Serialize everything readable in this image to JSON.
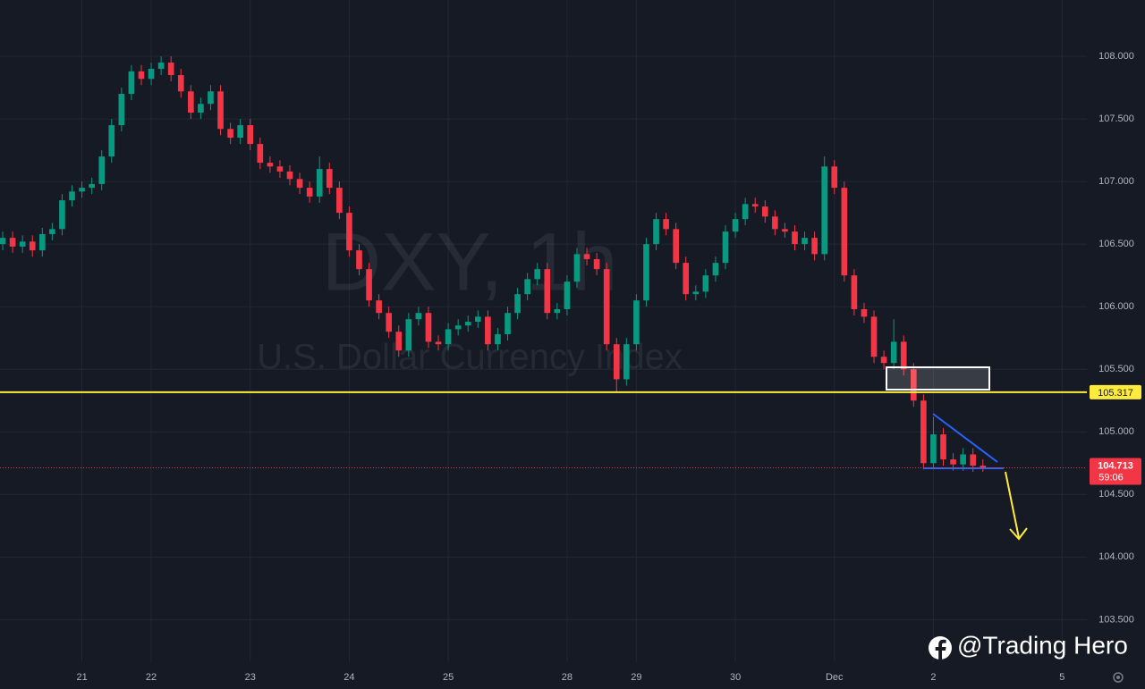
{
  "chart_data": {
    "type": "candlestick",
    "watermark_symbol": "DXY, 1h",
    "watermark_name": "U.S. Dollar Currency Index",
    "categories": [
      null,
      null,
      null,
      null,
      null,
      null,
      null,
      null,
      "21",
      null,
      null,
      null,
      null,
      null,
      null,
      "22",
      null,
      null,
      null,
      null,
      null,
      null,
      null,
      null,
      null,
      "23",
      null,
      null,
      null,
      null,
      null,
      null,
      null,
      null,
      null,
      "24",
      null,
      null,
      null,
      null,
      null,
      null,
      null,
      null,
      null,
      "25",
      null,
      null,
      null,
      null,
      null,
      null,
      null,
      null,
      null,
      null,
      null,
      "28",
      null,
      null,
      null,
      null,
      null,
      null,
      "29",
      null,
      null,
      null,
      null,
      null,
      null,
      null,
      null,
      null,
      "30",
      null,
      null,
      null,
      null,
      null,
      null,
      null,
      null,
      null,
      "Dec",
      null,
      null,
      null,
      null,
      null,
      null,
      null,
      null,
      null,
      "2",
      null,
      null,
      null,
      null,
      null,
      null,
      null,
      null,
      null,
      null,
      null,
      null,
      "5",
      null,
      null
    ],
    "open": [
      106.5,
      106.55,
      106.48,
      106.52,
      106.45,
      106.58,
      106.62,
      106.85,
      106.92,
      106.95,
      106.98,
      107.2,
      107.45,
      107.7,
      107.88,
      107.82,
      107.9,
      107.95,
      107.85,
      107.72,
      107.55,
      107.62,
      107.72,
      107.42,
      107.35,
      107.45,
      107.3,
      107.15,
      107.12,
      107.08,
      107.02,
      106.95,
      106.88,
      107.1,
      106.95,
      106.75,
      106.45,
      106.3,
      106.05,
      105.95,
      105.8,
      105.65,
      105.9,
      105.95,
      105.72,
      105.7,
      105.82,
      105.85,
      105.88,
      105.92,
      105.7,
      105.78,
      105.95,
      106.1,
      106.22,
      106.3,
      105.95,
      105.98,
      106.2,
      106.42,
      106.38,
      106.3,
      105.7,
      105.42,
      105.7,
      106.05,
      106.5,
      106.7,
      106.62,
      106.35,
      106.1,
      106.12,
      106.25,
      106.35,
      106.6,
      106.7,
      106.82,
      106.8,
      106.72,
      106.62,
      106.6,
      106.5,
      106.55,
      106.42,
      107.12,
      106.95,
      106.25,
      105.98,
      105.92,
      105.6,
      105.55,
      105.72,
      105.5,
      105.25,
      104.75,
      104.98,
      104.78,
      104.74,
      104.82,
      104.73,
      null,
      null,
      null,
      null,
      null,
      null,
      null,
      null,
      null,
      null
    ],
    "high": [
      106.6,
      106.6,
      106.57,
      106.57,
      106.63,
      106.67,
      106.9,
      106.97,
      107,
      107.03,
      107.25,
      107.5,
      107.75,
      107.93,
      107.93,
      107.95,
      108.0,
      108.0,
      107.9,
      107.77,
      107.67,
      107.77,
      107.77,
      107.47,
      107.5,
      107.5,
      107.35,
      107.2,
      107.17,
      107.13,
      107.07,
      107,
      107.2,
      107.15,
      107,
      106.8,
      106.5,
      106.35,
      106.1,
      106,
      105.85,
      105.95,
      106,
      106,
      105.77,
      105.87,
      105.9,
      105.93,
      105.97,
      105.97,
      105.83,
      106,
      106.15,
      106.27,
      106.35,
      106.35,
      106.03,
      106.25,
      106.47,
      106.47,
      106.43,
      106.35,
      105.75,
      105.75,
      106.1,
      106.55,
      106.75,
      106.75,
      106.67,
      106.4,
      106.17,
      106.3,
      106.4,
      106.65,
      106.75,
      106.87,
      106.87,
      106.85,
      106.77,
      106.67,
      106.65,
      106.6,
      106.6,
      107.2,
      107.17,
      107,
      106.3,
      106.03,
      105.97,
      105.65,
      105.9,
      105.77,
      105.55,
      105.3,
      105.12,
      105.03,
      104.83,
      104.87,
      104.87,
      104.78,
      null,
      null,
      null,
      null,
      null,
      null,
      null,
      null,
      null,
      null
    ],
    "low": [
      106.45,
      106.43,
      106.43,
      106.4,
      106.4,
      106.53,
      106.57,
      106.8,
      106.87,
      106.9,
      106.93,
      107.15,
      107.4,
      107.65,
      107.77,
      107.77,
      107.85,
      107.8,
      107.67,
      107.5,
      107.5,
      107.57,
      107.37,
      107.3,
      107.3,
      107.25,
      107.1,
      107.07,
      107.03,
      106.97,
      106.9,
      106.83,
      106.83,
      106.9,
      106.7,
      106.4,
      106.25,
      106,
      105.9,
      105.75,
      105.6,
      105.6,
      105.85,
      105.67,
      105.65,
      105.65,
      105.77,
      105.8,
      105.83,
      105.65,
      105.65,
      105.73,
      105.9,
      106.05,
      106.17,
      105.9,
      105.9,
      105.93,
      106.15,
      106.33,
      106.25,
      105.65,
      105.32,
      105.37,
      105.65,
      106,
      106.45,
      106.57,
      106.3,
      106.05,
      106.05,
      106.07,
      106.2,
      106.3,
      106.55,
      106.65,
      106.75,
      106.67,
      106.57,
      106.55,
      106.45,
      106.45,
      106.37,
      106.37,
      106.9,
      106.2,
      105.93,
      105.87,
      105.55,
      105.5,
      105.5,
      105.45,
      105.2,
      104.7,
      104.7,
      104.73,
      104.69,
      104.69,
      104.68,
      104.68,
      null,
      null,
      null,
      null,
      null,
      null,
      null,
      null,
      null,
      null
    ],
    "close": [
      106.55,
      106.48,
      106.52,
      106.45,
      106.58,
      106.62,
      106.85,
      106.92,
      106.95,
      106.98,
      107.2,
      107.45,
      107.7,
      107.88,
      107.82,
      107.9,
      107.95,
      107.85,
      107.72,
      107.55,
      107.62,
      107.72,
      107.42,
      107.35,
      107.45,
      107.3,
      107.15,
      107.12,
      107.08,
      107.02,
      106.95,
      106.88,
      107.1,
      106.95,
      106.75,
      106.45,
      106.3,
      106.05,
      105.95,
      105.8,
      105.65,
      105.9,
      105.95,
      105.72,
      105.7,
      105.82,
      105.85,
      105.88,
      105.92,
      105.7,
      105.78,
      105.95,
      106.1,
      106.22,
      106.3,
      105.95,
      105.98,
      106.2,
      106.42,
      106.38,
      106.3,
      105.7,
      105.42,
      105.7,
      106.05,
      106.5,
      106.7,
      106.62,
      106.35,
      106.1,
      106.12,
      106.25,
      106.35,
      106.6,
      106.7,
      106.82,
      106.8,
      106.72,
      106.62,
      106.6,
      106.5,
      106.55,
      106.42,
      107.12,
      106.95,
      106.25,
      105.98,
      105.92,
      105.6,
      105.55,
      105.72,
      105.5,
      105.25,
      104.75,
      104.98,
      104.78,
      104.74,
      104.82,
      104.73,
      104.713,
      null,
      null,
      null,
      null,
      null,
      null,
      null,
      null,
      null,
      null
    ],
    "up_color": "#089981",
    "down_color": "#f23645",
    "ylim": [
      103.16,
      108.45
    ],
    "yticks": [
      {
        "value": 103.5,
        "label": "103.500"
      },
      {
        "value": 104,
        "label": "104.000"
      },
      {
        "value": 104.5,
        "label": "104.500"
      },
      {
        "value": 105,
        "label": "105.000"
      },
      {
        "value": 105.5,
        "label": "105.500"
      },
      {
        "value": 106,
        "label": "106.000"
      },
      {
        "value": 106.5,
        "label": "106.500"
      },
      {
        "value": 107,
        "label": "107.000"
      },
      {
        "value": 107.5,
        "label": "107.500"
      },
      {
        "value": 108,
        "label": "108.000"
      }
    ],
    "grid": true,
    "support_level": 105.317,
    "support_color": "#ffeb3b",
    "last_price": 104.713,
    "countdown": "59:06"
  },
  "footer": "@Trading Hero"
}
